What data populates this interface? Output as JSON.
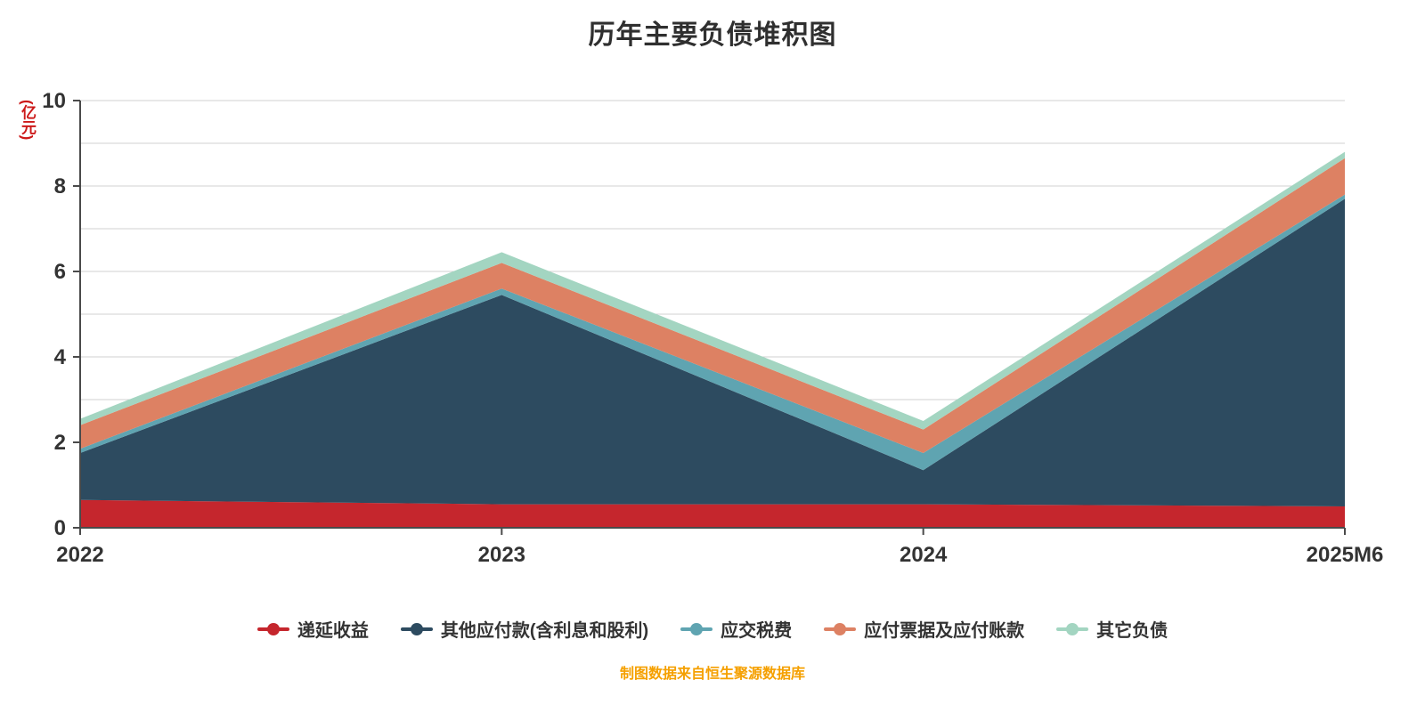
{
  "footer": "制图数据来自恒生聚源数据库",
  "colors": {
    "title": "#2f2f2f",
    "axis_label": "#333333",
    "axis_line": "#4a4a4a",
    "grid": "#d2d2d2",
    "unit": "#cc1919",
    "footer": "#f5a000"
  },
  "chart_data": {
    "type": "area",
    "stacked": true,
    "title": "历年主要负债堆积图",
    "ylabel": "(亿元)",
    "x": [
      "2022",
      "2023",
      "2024",
      "2025M6"
    ],
    "series": [
      {
        "name": "递延收益",
        "color": "#c5262d",
        "values": [
          0.65,
          0.55,
          0.55,
          0.5
        ]
      },
      {
        "name": "其他应付款(含利息和股利)",
        "color": "#2d4b60",
        "values": [
          1.1,
          4.9,
          0.8,
          7.2
        ]
      },
      {
        "name": "应交税费",
        "color": "#5fa4b1",
        "values": [
          0.1,
          0.15,
          0.4,
          0.1
        ]
      },
      {
        "name": "应付票据及应付账款",
        "color": "#dd8163",
        "values": [
          0.55,
          0.6,
          0.55,
          0.85
        ]
      },
      {
        "name": "其它负债",
        "color": "#a3d5c1",
        "values": [
          0.15,
          0.25,
          0.2,
          0.15
        ]
      }
    ],
    "stacked_totals": [
      2.55,
      6.45,
      2.5,
      8.8
    ],
    "ylim": [
      0,
      10
    ],
    "yticks": [
      0,
      2,
      4,
      6,
      8,
      10
    ],
    "grid": true,
    "legend_position": "bottom"
  }
}
